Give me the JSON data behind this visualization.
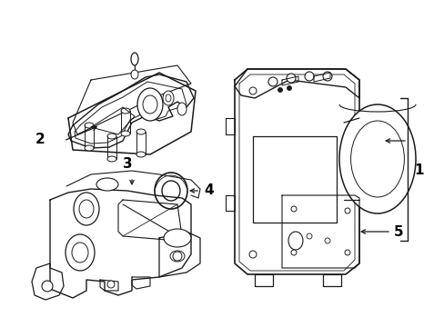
{
  "background_color": "#ffffff",
  "line_color": "#1a1a1a",
  "fig_width": 4.89,
  "fig_height": 3.6,
  "dpi": 100,
  "label_fontsize": 11,
  "label_color": "#000000"
}
